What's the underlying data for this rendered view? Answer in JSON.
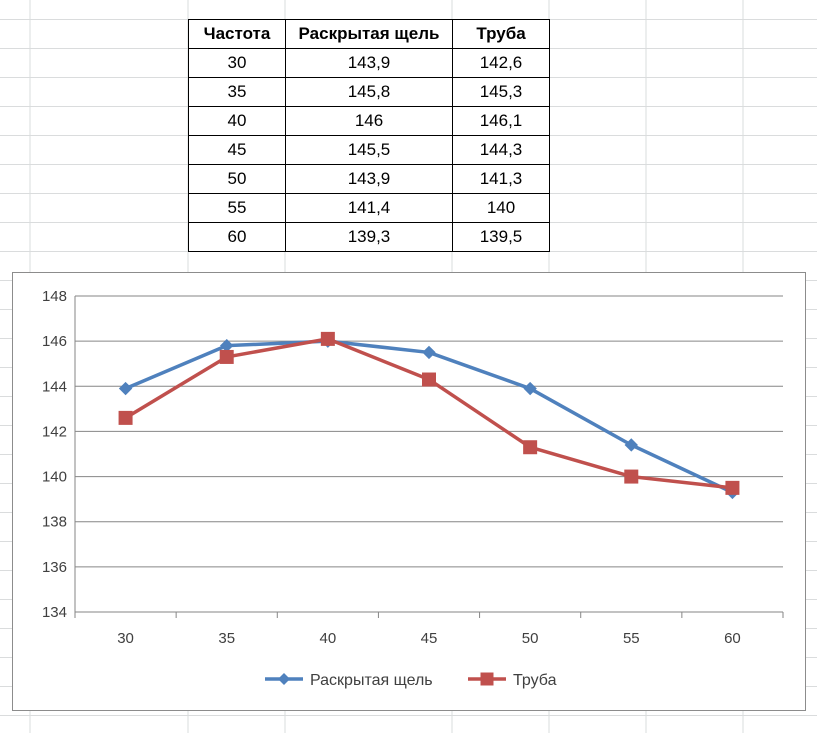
{
  "table": {
    "headers": [
      "Частота",
      "Раскрытая щель",
      "Труба"
    ],
    "rows": [
      [
        "30",
        "143,9",
        "142,6"
      ],
      [
        "35",
        "145,8",
        "145,3"
      ],
      [
        "40",
        "146",
        "146,1"
      ],
      [
        "45",
        "145,5",
        "144,3"
      ],
      [
        "50",
        "143,9",
        "141,3"
      ],
      [
        "55",
        "141,4",
        "140"
      ],
      [
        "60",
        "139,3",
        "139,5"
      ]
    ]
  },
  "chart_data": {
    "type": "line",
    "title": "",
    "xlabel": "",
    "ylabel": "",
    "categories": [
      "30",
      "35",
      "40",
      "45",
      "50",
      "55",
      "60"
    ],
    "ylim": [
      134,
      148
    ],
    "yticks": [
      134,
      136,
      138,
      140,
      142,
      144,
      146,
      148
    ],
    "grid": true,
    "legend": "bottom",
    "series": [
      {
        "name": "Раскрытая щель",
        "values": [
          143.9,
          145.8,
          146,
          145.5,
          143.9,
          141.4,
          139.3
        ],
        "color": "#4F81BD",
        "marker": "diamond"
      },
      {
        "name": "Труба",
        "values": [
          142.6,
          145.3,
          146.1,
          144.3,
          141.3,
          140,
          139.5
        ],
        "color": "#C0504D",
        "marker": "square"
      }
    ]
  }
}
